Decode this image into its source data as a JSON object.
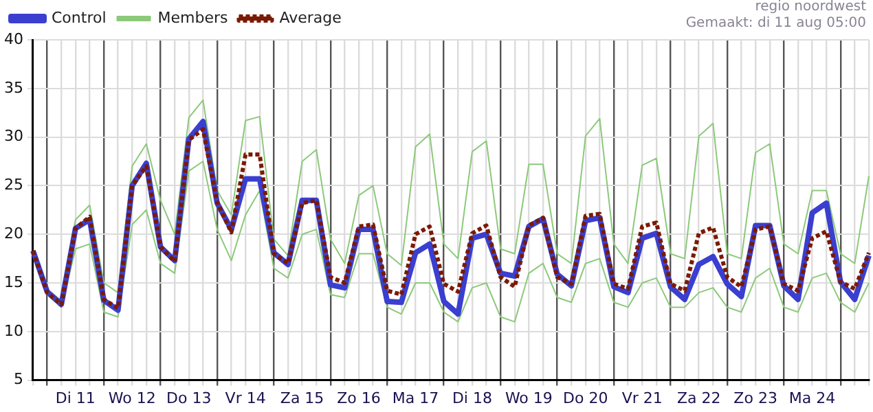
{
  "chart_data": {
    "type": "line",
    "legend": "top left",
    "grid": true,
    "marker": "none",
    "line_style": "solid",
    "annotations": [
      "regio noordwest",
      "Gemaakt: di 11 aug 05:00"
    ],
    "categories": [
      null,
      null,
      null,
      "Di 11",
      null,
      null,
      null,
      "Wo 12",
      null,
      null,
      null,
      "Do 13",
      null,
      null,
      null,
      "Vr 14",
      null,
      null,
      null,
      "Za 15",
      null,
      null,
      null,
      "Zo 16",
      null,
      null,
      null,
      "Ma 17",
      null,
      null,
      null,
      "Di 18",
      null,
      null,
      null,
      "Wo 19",
      null,
      null,
      null,
      "Do 20",
      null,
      null,
      null,
      "Vr 21",
      null,
      null,
      null,
      "Za 22",
      null,
      null,
      null,
      "Zo 23",
      null,
      null,
      null,
      "Ma 24",
      null,
      null,
      null,
      null
    ],
    "ylim": [
      5,
      40
    ],
    "yticks": [
      5,
      10,
      15,
      20,
      25,
      30,
      35,
      40
    ],
    "series": [
      {
        "name": "Control",
        "color": "#3a3fd0",
        "values": [
          18.3,
          14.1,
          12.8,
          20.6,
          21.5,
          13.2,
          12.2,
          25,
          27.3,
          18.7,
          17.3,
          29.8,
          31.6,
          23.2,
          20.5,
          25.7,
          25.7,
          18.1,
          16.9,
          23.5,
          23.5,
          14.8,
          14.5,
          20.5,
          20.5,
          13.1,
          13,
          18.1,
          19,
          13.1,
          11.8,
          19.6,
          20,
          16,
          15.7,
          20.8,
          21.6,
          15.9,
          14.7,
          21.4,
          21.7,
          14.6,
          14,
          19.6,
          20.1,
          14.6,
          13.3,
          16.9,
          17.7,
          14.9,
          13.6,
          20.9,
          20.9,
          14.7,
          13.3,
          22.2,
          23.2,
          15.1,
          13.3,
          17.8
        ]
      },
      {
        "name": "Members",
        "color": "#8cc97a",
        "values": [
          18.3,
          14.3,
          13.2,
          21.5,
          23,
          15,
          14,
          27,
          29.3,
          23.5,
          20,
          32,
          33.8,
          24.5,
          22,
          31.7,
          32.1,
          19.5,
          17.8,
          27.5,
          28.7,
          19.5,
          17,
          24,
          25,
          18,
          16.8,
          29,
          30.3,
          19,
          17.5,
          28.5,
          29.6,
          18.5,
          18,
          27.2,
          27.2,
          18,
          17,
          30.1,
          31.9,
          19,
          17,
          27.1,
          27.8,
          18,
          17.5,
          30.1,
          31.4,
          18,
          17.5,
          28.4,
          29.3,
          19,
          18,
          24.5,
          24.5,
          18,
          17,
          26
        ]
      },
      {
        "color": "#8cc97a",
        "values": [
          18.3,
          13.8,
          12.5,
          18.5,
          19,
          12,
          11.5,
          21,
          22.5,
          17,
          16,
          26.5,
          27.5,
          20.5,
          17.3,
          22,
          24.5,
          16.5,
          15.5,
          20,
          20.5,
          13.8,
          13.5,
          18,
          18,
          12.5,
          11.8,
          15,
          15,
          12,
          11,
          14.5,
          15,
          11.5,
          11,
          16,
          17,
          13.5,
          13,
          17,
          17.5,
          13,
          12.5,
          15,
          15.5,
          12.5,
          12.5,
          14,
          14.5,
          12.5,
          12,
          15.5,
          16.5,
          12.5,
          12,
          15.5,
          16,
          13,
          12,
          15
        ]
      },
      {
        "name": "Average",
        "color": "#7a1a05",
        "line_style": "dotted",
        "values": [
          18.3,
          14,
          12.8,
          20.6,
          21.8,
          13.3,
          12.4,
          25,
          27,
          18.7,
          17.2,
          29.7,
          30.8,
          23.3,
          20.2,
          28.2,
          28.2,
          18,
          17,
          23.2,
          23.5,
          15.6,
          15,
          20.8,
          21,
          14.2,
          13.8,
          20,
          20.8,
          14.9,
          14.1,
          20.1,
          20.9,
          15.6,
          14.6,
          20.9,
          21.7,
          15.6,
          14.9,
          21.9,
          22.1,
          14.9,
          14.4,
          20.8,
          21.2,
          14.9,
          14.2,
          20.1,
          20.7,
          15.6,
          14.6,
          20.5,
          20.8,
          14.9,
          14.2,
          19.6,
          20.3,
          15.1,
          14.4,
          18.1
        ]
      }
    ]
  }
}
